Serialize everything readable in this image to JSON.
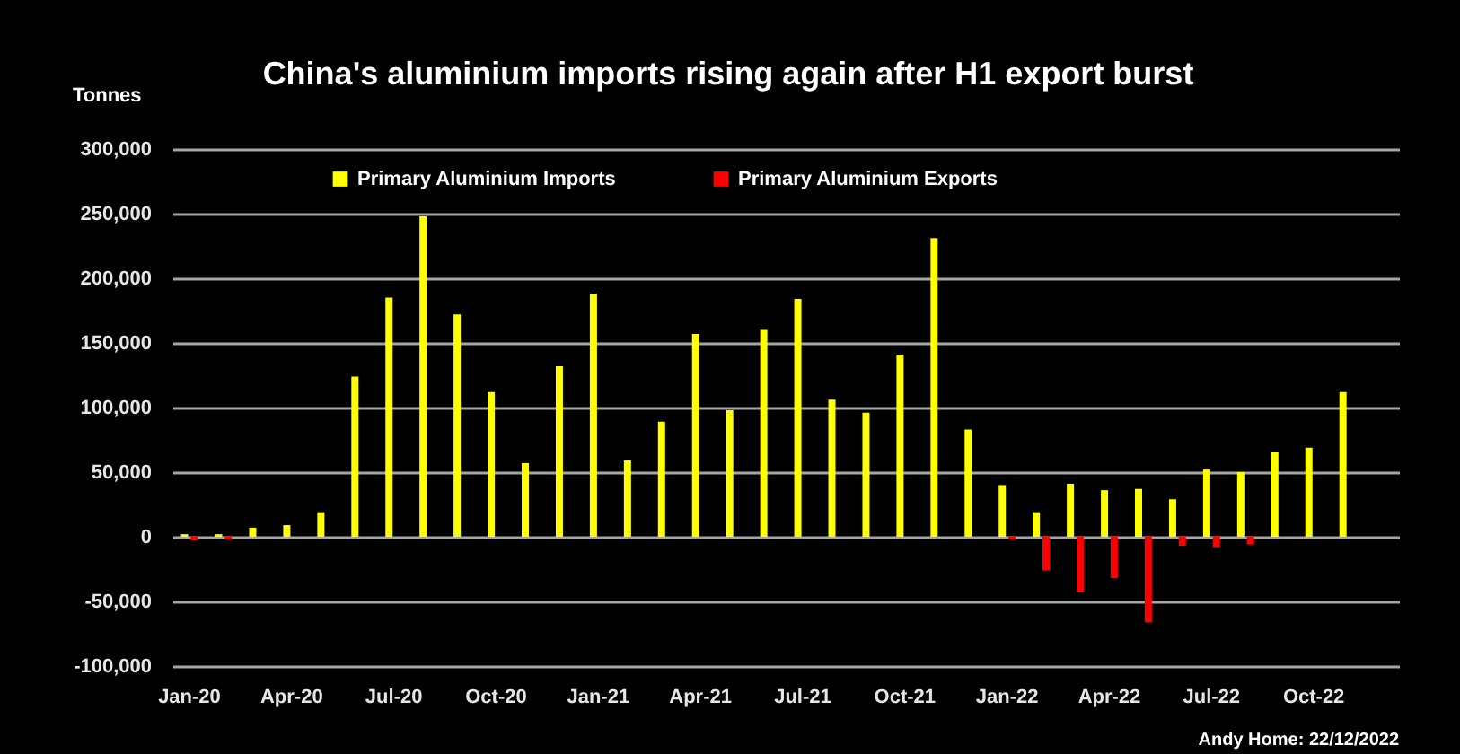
{
  "chart_data": {
    "type": "bar",
    "title": "China's aluminium imports rising again after H1 export burst",
    "ylabel": "Tonnes",
    "categories": [
      "Jan-20",
      null,
      null,
      "Apr-20",
      null,
      null,
      "Jul-20",
      null,
      null,
      "Oct-20",
      null,
      null,
      "Jan-21",
      null,
      null,
      "Apr-21",
      null,
      null,
      "Jul-21",
      null,
      null,
      "Oct-21",
      null,
      null,
      "Jan-22",
      null,
      null,
      "Apr-22",
      null,
      null,
      "Jul-22",
      null,
      null,
      "Oct-22",
      null,
      null
    ],
    "series": [
      {
        "name": "Primary Aluminium Imports",
        "color": "#ffff00",
        "values": [
          2000,
          2000,
          7000,
          9000,
          19000,
          124000,
          185000,
          248000,
          172000,
          112000,
          57000,
          132000,
          188000,
          59000,
          89000,
          157000,
          98000,
          160000,
          184000,
          106000,
          96000,
          141000,
          231000,
          83000,
          40000,
          19000,
          41000,
          36000,
          37000,
          29000,
          52000,
          50000,
          66000,
          69000,
          112000,
          null
        ]
      },
      {
        "name": "Primary Aluminium Exports",
        "color": "#ff0000",
        "values": [
          -3000,
          -2000,
          null,
          null,
          null,
          null,
          null,
          null,
          null,
          null,
          null,
          null,
          null,
          null,
          null,
          null,
          null,
          null,
          null,
          null,
          null,
          null,
          null,
          null,
          -2000,
          -26000,
          -43000,
          -32000,
          -66000,
          -7000,
          -8000,
          -6000,
          null,
          null,
          null,
          null
        ]
      }
    ],
    "ylim": [
      -100000,
      300000
    ],
    "yticks": [
      {
        "value": -100000,
        "label": "-100,000"
      },
      {
        "value": -50000,
        "label": "-50,000"
      },
      0,
      {
        "value": 50000,
        "label": "50,000"
      },
      {
        "value": 100000,
        "label": "100,000"
      },
      {
        "value": 150000,
        "label": "150,000"
      },
      {
        "value": 200000,
        "label": "200,000"
      },
      {
        "value": 250000,
        "label": "250,000"
      },
      {
        "value": 300000,
        "label": "300,000"
      }
    ],
    "grid": "y",
    "legend": "top",
    "annotations": [
      "Andy Home: 22/12/2022"
    ]
  }
}
